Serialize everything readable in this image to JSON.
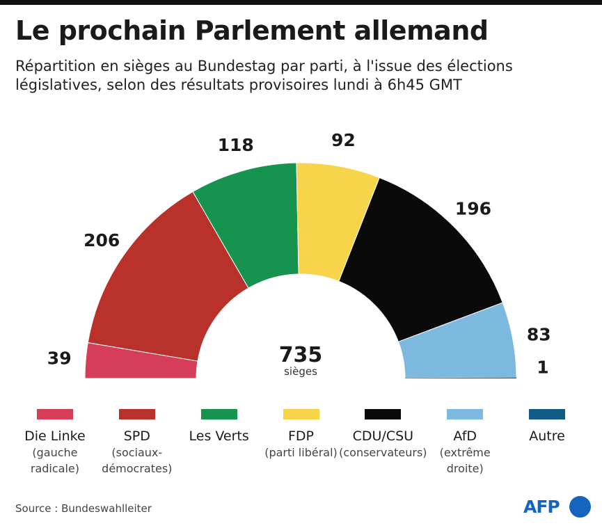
{
  "title": "Le prochain Parlement allemand",
  "subtitle": "Répartition en sièges au Bundestag par parti, à l'issue des élections législatives, selon des résultats provisoires lundi à 6h45 GMT",
  "chart_data": {
    "type": "pie",
    "shape": "half-donut (parliament)",
    "title": "Le prochain Parlement allemand",
    "total": {
      "value": 735,
      "unit": "sièges"
    },
    "categories": [
      "Die Linke",
      "SPD",
      "Les Verts",
      "FDP",
      "CDU/CSU",
      "AfD",
      "Autre"
    ],
    "values": [
      39,
      206,
      118,
      92,
      196,
      83,
      1
    ],
    "colors": [
      "#d63d58",
      "#b8312a",
      "#16944f",
      "#f7d44a",
      "#0a0a0a",
      "#7db8de",
      "#0f5b86"
    ],
    "legend": [
      {
        "name": "Die Linke",
        "desc": [
          "(gauche",
          "radicale)"
        ]
      },
      {
        "name": "SPD",
        "desc": [
          "(sociaux-",
          "démocrates)"
        ]
      },
      {
        "name": "Les Verts",
        "desc": []
      },
      {
        "name": "FDP",
        "desc": [
          "(parti libéral)"
        ]
      },
      {
        "name": "CDU/CSU",
        "desc": [
          "(conservateurs)"
        ]
      },
      {
        "name": "AfD",
        "desc": [
          "(extrême",
          "droite)"
        ]
      },
      {
        "name": "Autre",
        "desc": []
      }
    ],
    "legend_position": "bottom"
  },
  "source": "Source : Bundeswahlleiter",
  "logo": "AFP"
}
